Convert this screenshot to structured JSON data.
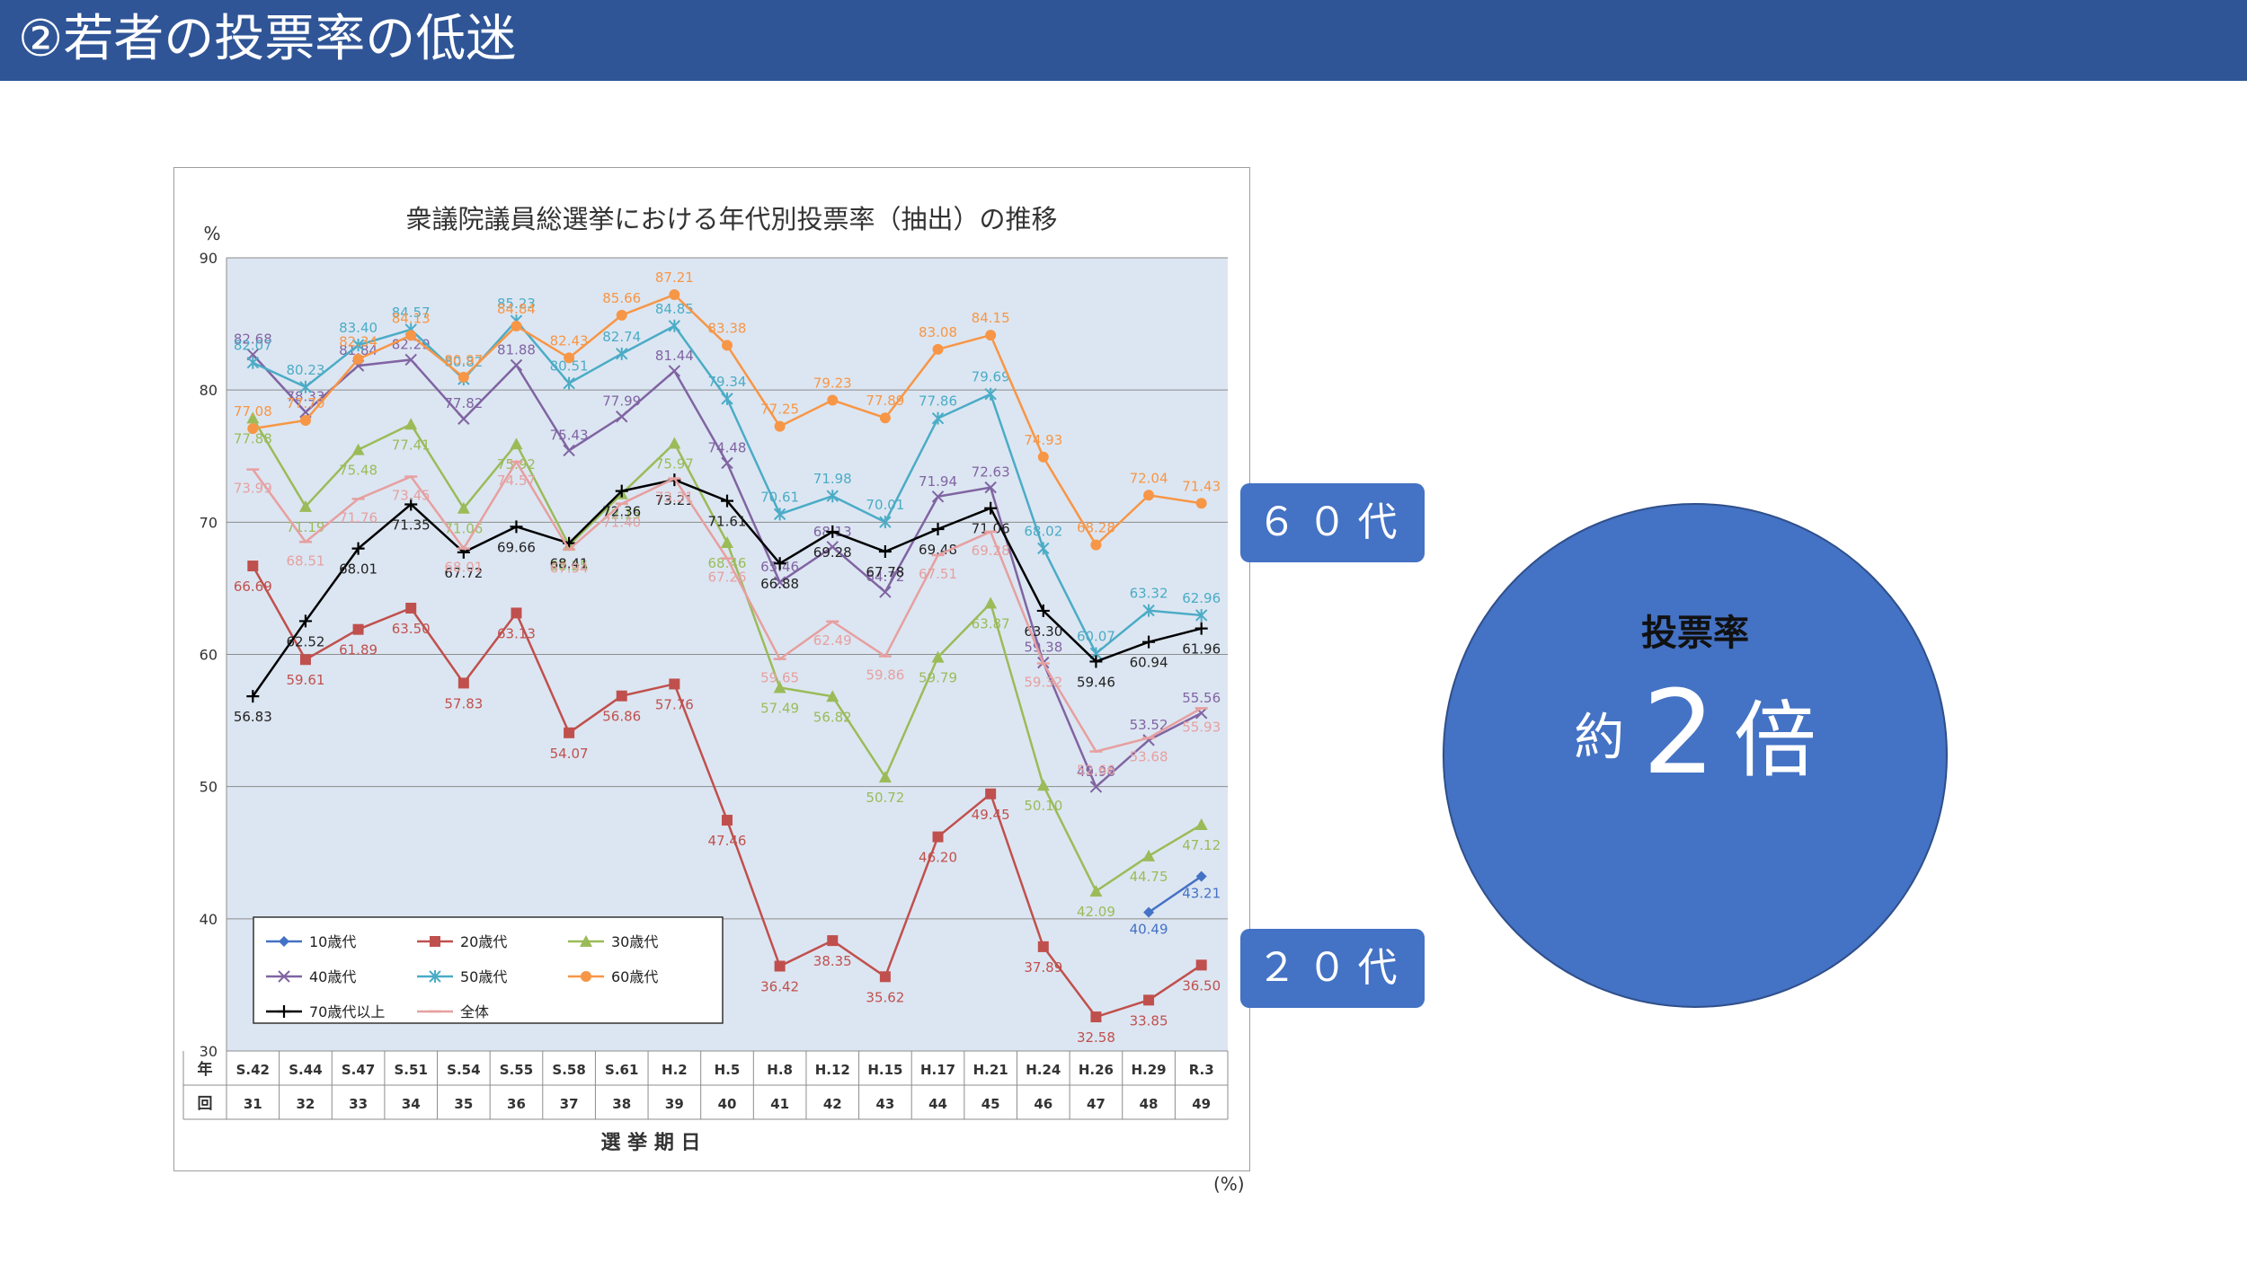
{
  "header": {
    "title": "②若者の投票率の低迷"
  },
  "callouts": {
    "sixties": "６０代",
    "twenties": "２０代"
  },
  "circle": {
    "label": "投票率",
    "prefix": "約",
    "number": "2",
    "suffix": "倍"
  },
  "unit_note": "(%)",
  "colors": {
    "header_bg": "#2f5597",
    "accent": "#4472c4",
    "plot_bg": "#dce6f2",
    "series": {
      "10歳代": "#4472c4",
      "20歳代": "#c0504d",
      "30歳代": "#9bbb59",
      "40歳代": "#8064a2",
      "50歳代": "#4bacc6",
      "60歳代": "#f79646",
      "70歳代以上": "#000000",
      "全体": "#e6a0a0"
    }
  },
  "chart_data": {
    "type": "line",
    "title": "衆議院議員総選挙における年代別投票率（抽出）の推移",
    "ylabel": "%",
    "xlabel": "選 挙 期 日",
    "row_labels": [
      "年",
      "回"
    ],
    "ylim": [
      30,
      90
    ],
    "yticks": [
      30,
      40,
      50,
      60,
      70,
      80,
      90
    ],
    "grid": true,
    "legend_position": "bottom-left",
    "categories": [
      "S.42",
      "S.44",
      "S.47",
      "S.51",
      "S.54",
      "S.55",
      "S.58",
      "S.61",
      "H.2",
      "H.5",
      "H.8",
      "H.12",
      "H.15",
      "H.17",
      "H.21",
      "H.24",
      "H.26",
      "H.29",
      "R.3"
    ],
    "rounds": [
      "31",
      "32",
      "33",
      "34",
      "35",
      "36",
      "37",
      "38",
      "39",
      "40",
      "41",
      "42",
      "43",
      "44",
      "45",
      "46",
      "47",
      "48",
      "49"
    ],
    "series": [
      {
        "name": "10歳代",
        "marker": "diamond",
        "values": [
          null,
          null,
          null,
          null,
          null,
          null,
          null,
          null,
          null,
          null,
          null,
          null,
          null,
          null,
          null,
          null,
          null,
          40.49,
          43.21
        ]
      },
      {
        "name": "20歳代",
        "marker": "square",
        "values": [
          66.69,
          59.61,
          61.89,
          63.5,
          57.83,
          63.13,
          54.07,
          56.86,
          57.76,
          47.46,
          36.42,
          38.35,
          35.62,
          46.2,
          49.45,
          37.89,
          32.58,
          33.85,
          36.5
        ]
      },
      {
        "name": "30歳代",
        "marker": "triangle",
        "values": [
          77.88,
          71.19,
          75.48,
          77.41,
          71.06,
          75.92,
          68.25,
          72.15,
          75.97,
          68.46,
          57.49,
          56.82,
          50.72,
          59.79,
          63.87,
          50.1,
          42.09,
          44.75,
          47.12
        ]
      },
      {
        "name": "40歳代",
        "marker": "x",
        "values": [
          82.68,
          78.33,
          81.84,
          82.29,
          77.82,
          81.88,
          75.43,
          77.99,
          81.44,
          74.48,
          65.46,
          68.13,
          64.72,
          71.94,
          72.63,
          59.38,
          49.98,
          53.52,
          55.56
        ]
      },
      {
        "name": "50歳代",
        "marker": "star",
        "values": [
          82.07,
          80.23,
          83.4,
          84.57,
          80.82,
          85.23,
          80.51,
          82.74,
          84.85,
          79.34,
          70.61,
          71.98,
          70.01,
          77.86,
          79.69,
          68.02,
          60.07,
          63.32,
          62.96
        ]
      },
      {
        "name": "60歳代",
        "marker": "circle",
        "values": [
          77.08,
          77.7,
          82.34,
          84.13,
          80.97,
          84.84,
          82.43,
          85.66,
          87.21,
          83.38,
          77.25,
          79.23,
          77.89,
          83.08,
          84.15,
          74.93,
          68.28,
          72.04,
          71.43
        ]
      },
      {
        "name": "70歳代以上",
        "marker": "plus",
        "values": [
          56.83,
          62.52,
          68.01,
          71.35,
          67.72,
          69.66,
          68.41,
          72.36,
          73.21,
          71.61,
          66.88,
          69.28,
          67.78,
          69.48,
          71.06,
          63.3,
          59.46,
          60.94,
          61.96
        ]
      },
      {
        "name": "全体",
        "marker": "dash",
        "values": [
          73.99,
          68.51,
          71.76,
          73.45,
          68.01,
          74.57,
          67.94,
          71.4,
          73.31,
          67.26,
          59.65,
          62.49,
          59.86,
          67.51,
          69.28,
          59.32,
          52.66,
          53.68,
          55.93
        ]
      }
    ]
  }
}
